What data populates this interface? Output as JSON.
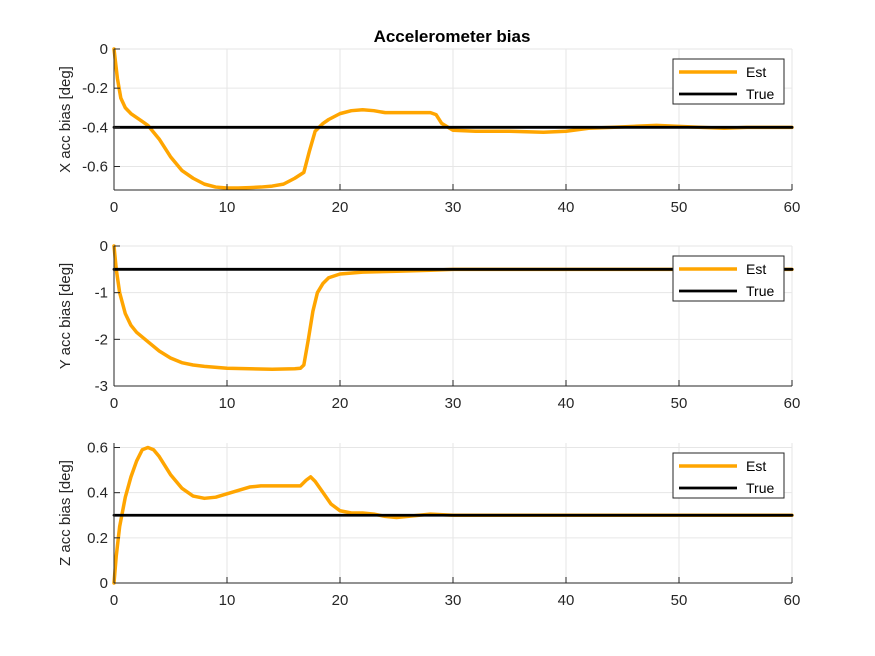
{
  "figure": {
    "title": "Accelerometer bias"
  },
  "colors": {
    "est": "#FFA500",
    "true": "#000000",
    "grid": "#e6e6e6",
    "axis": "#262626"
  },
  "chart_data": [
    {
      "type": "line",
      "title": "Accelerometer bias",
      "xlabel": "",
      "ylabel": "X acc bias [deg]",
      "xlim": [
        0,
        60
      ],
      "ylim": [
        -0.72,
        0
      ],
      "xticks": [
        0,
        10,
        20,
        30,
        40,
        50,
        60
      ],
      "yticks": [
        0,
        -0.2,
        -0.4,
        -0.6
      ],
      "ytick_labels": [
        "0",
        "-0.2",
        "-0.4",
        "-0.6"
      ],
      "grid": true,
      "legend_position": "top-right",
      "series": [
        {
          "name": "Est",
          "x": [
            0,
            0.3,
            0.6,
            1,
            1.5,
            2,
            2.5,
            3,
            4,
            5,
            6,
            7,
            8,
            9,
            10,
            11,
            12,
            13,
            14,
            15,
            16,
            16.8,
            17.3,
            17.8,
            18.5,
            19,
            20,
            21,
            22,
            23,
            24,
            25,
            26,
            27,
            28,
            28.5,
            29,
            30,
            32,
            35,
            38,
            40,
            42,
            44,
            46,
            48,
            50,
            52,
            54,
            56,
            58,
            60
          ],
          "y": [
            0,
            -0.15,
            -0.25,
            -0.3,
            -0.33,
            -0.35,
            -0.37,
            -0.39,
            -0.46,
            -0.55,
            -0.62,
            -0.66,
            -0.69,
            -0.705,
            -0.71,
            -0.71,
            -0.708,
            -0.705,
            -0.7,
            -0.69,
            -0.66,
            -0.63,
            -0.52,
            -0.42,
            -0.38,
            -0.36,
            -0.33,
            -0.315,
            -0.31,
            -0.315,
            -0.325,
            -0.325,
            -0.325,
            -0.325,
            -0.325,
            -0.335,
            -0.38,
            -0.415,
            -0.42,
            -0.42,
            -0.425,
            -0.42,
            -0.405,
            -0.4,
            -0.395,
            -0.39,
            -0.395,
            -0.4,
            -0.405,
            -0.4,
            -0.4,
            -0.4
          ]
        },
        {
          "name": "True",
          "x": [
            0,
            60
          ],
          "y": [
            -0.4,
            -0.4
          ]
        }
      ]
    },
    {
      "type": "line",
      "title": "",
      "xlabel": "",
      "ylabel": "Y acc bias [deg]",
      "xlim": [
        0,
        60
      ],
      "ylim": [
        -3,
        0
      ],
      "xticks": [
        0,
        10,
        20,
        30,
        40,
        50,
        60
      ],
      "yticks": [
        0,
        -1,
        -2,
        -3
      ],
      "ytick_labels": [
        "0",
        "-1",
        "-2",
        "-3"
      ],
      "grid": true,
      "legend_position": "top-right",
      "series": [
        {
          "name": "Est",
          "x": [
            0,
            0.2,
            0.5,
            1,
            1.5,
            2,
            3,
            4,
            5,
            6,
            7,
            8,
            10,
            12,
            14,
            16,
            16.5,
            16.8,
            17.2,
            17.6,
            18,
            18.5,
            19,
            20,
            22,
            25,
            28,
            30,
            35,
            40,
            45,
            50,
            55,
            60
          ],
          "y": [
            0,
            -0.5,
            -1.0,
            -1.45,
            -1.7,
            -1.85,
            -2.05,
            -2.25,
            -2.4,
            -2.5,
            -2.55,
            -2.58,
            -2.62,
            -2.63,
            -2.64,
            -2.63,
            -2.62,
            -2.55,
            -2.0,
            -1.4,
            -1.0,
            -0.8,
            -0.68,
            -0.6,
            -0.56,
            -0.54,
            -0.52,
            -0.5,
            -0.5,
            -0.5,
            -0.5,
            -0.5,
            -0.5,
            -0.5
          ]
        },
        {
          "name": "True",
          "x": [
            0,
            60
          ],
          "y": [
            -0.5,
            -0.5
          ]
        }
      ]
    },
    {
      "type": "line",
      "title": "",
      "xlabel": "",
      "ylabel": "Z acc bias [deg]",
      "xlim": [
        0,
        60
      ],
      "ylim": [
        0,
        0.62
      ],
      "xticks": [
        0,
        10,
        20,
        30,
        40,
        50,
        60
      ],
      "yticks": [
        0,
        0.2,
        0.4,
        0.6
      ],
      "ytick_labels": [
        "0",
        "0.2",
        "0.4",
        "0.6"
      ],
      "grid": true,
      "legend_position": "top-right",
      "series": [
        {
          "name": "Est",
          "x": [
            0,
            0.2,
            0.5,
            1,
            1.5,
            2,
            2.5,
            3,
            3.5,
            4,
            5,
            6,
            7,
            8,
            9,
            10,
            11,
            12,
            13,
            14,
            15,
            16,
            16.5,
            17,
            17.4,
            17.8,
            18.5,
            19.2,
            20,
            21,
            22,
            23,
            24,
            25,
            26,
            27,
            28,
            30,
            35,
            40,
            45,
            50,
            55,
            60
          ],
          "y": [
            0,
            0.12,
            0.25,
            0.38,
            0.47,
            0.54,
            0.59,
            0.6,
            0.59,
            0.56,
            0.48,
            0.42,
            0.385,
            0.375,
            0.38,
            0.395,
            0.41,
            0.425,
            0.43,
            0.43,
            0.43,
            0.43,
            0.43,
            0.455,
            0.47,
            0.45,
            0.4,
            0.35,
            0.32,
            0.31,
            0.31,
            0.305,
            0.295,
            0.29,
            0.295,
            0.3,
            0.305,
            0.3,
            0.3,
            0.3,
            0.3,
            0.3,
            0.3,
            0.3
          ]
        },
        {
          "name": "True",
          "x": [
            0,
            60
          ],
          "y": [
            0.3,
            0.3
          ]
        }
      ]
    }
  ]
}
